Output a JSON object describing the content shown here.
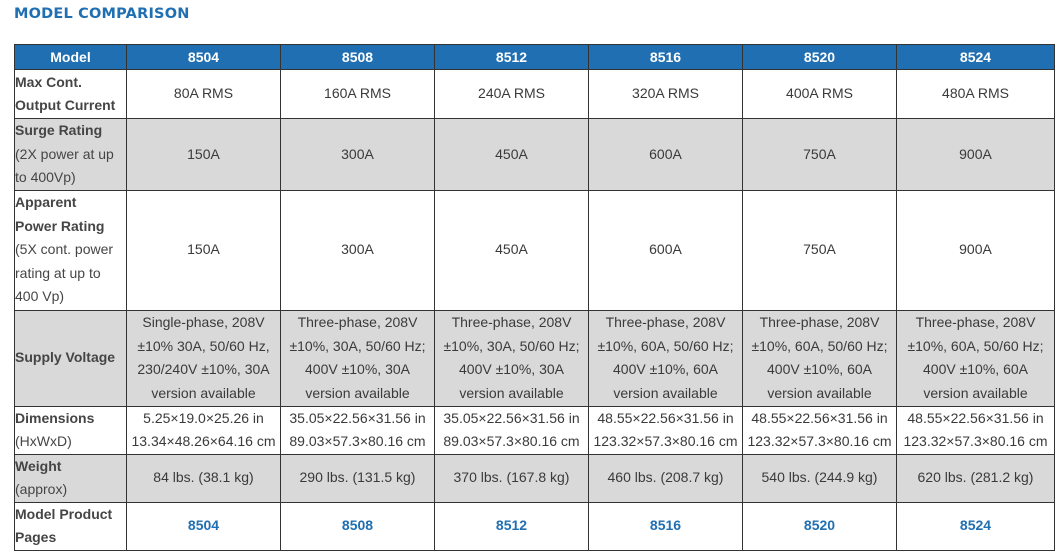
{
  "page_title": "MODEL COMPARISON",
  "header": {
    "model_label": "Model",
    "models": [
      "8504",
      "8508",
      "8512",
      "8516",
      "8520",
      "8524"
    ]
  },
  "rows": {
    "max_cont": {
      "label_lines": [
        "Max Cont.",
        "Output Current"
      ],
      "values": [
        "80A RMS",
        "160A RMS",
        "240A RMS",
        "320A RMS",
        "400A RMS",
        "480A RMS"
      ]
    },
    "surge": {
      "label": "Surge Rating",
      "sub_lines": [
        "(2X power at up",
        "to 400Vp)"
      ],
      "values": [
        "150A",
        "300A",
        "450A",
        "600A",
        "750A",
        "900A"
      ]
    },
    "apparent": {
      "label_lines": [
        "Apparent",
        "Power Rating"
      ],
      "sub_lines": [
        "(5X cont. power",
        "rating at up to",
        "400 Vp)"
      ],
      "values": [
        "150A",
        "300A",
        "450A",
        "600A",
        "750A",
        "900A"
      ]
    },
    "supply": {
      "label": "Supply Voltage",
      "values": [
        [
          "Single-phase, 208V",
          "±10% 30A, 50/60 Hz,",
          "230/240V ±10%, 30A",
          "version available"
        ],
        [
          "Three-phase, 208V",
          "±10%, 30A, 50/60 Hz;",
          "400V ±10%, 30A",
          "version available"
        ],
        [
          "Three-phase, 208V",
          "±10%, 30A, 50/60 Hz;",
          "400V ±10%, 30A",
          "version available"
        ],
        [
          "Three-phase, 208V",
          "±10%, 60A, 50/60 Hz;",
          "400V ±10%, 60A",
          "version available"
        ],
        [
          "Three-phase, 208V",
          "±10%, 60A, 50/60 Hz;",
          "400V ±10%, 60A",
          "version available"
        ],
        [
          "Three-phase, 208V",
          "±10%, 60A, 50/60 Hz;",
          "400V ±10%, 60A",
          "version available"
        ]
      ]
    },
    "dimensions": {
      "label": "Dimensions",
      "sub": "(HxWxD)",
      "values": [
        [
          "5.25×19.0×25.26 in",
          "13.34×48.26×64.16 cm"
        ],
        [
          "35.05×22.56×31.56 in",
          "89.03×57.3×80.16 cm"
        ],
        [
          "35.05×22.56×31.56 in",
          "89.03×57.3×80.16 cm"
        ],
        [
          "48.55×22.56×31.56 in",
          "123.32×57.3×80.16 cm"
        ],
        [
          "48.55×22.56×31.56 in",
          "123.32×57.3×80.16 cm"
        ],
        [
          "48.55×22.56×31.56 in",
          "123.32×57.3×80.16 cm"
        ]
      ]
    },
    "weight": {
      "label": "Weight",
      "sub": "(approx)",
      "values": [
        "84 lbs. (38.1 kg)",
        "290 lbs. (131.5 kg)",
        "370 lbs. (167.8 kg)",
        "460 lbs. (208.7 kg)",
        "540 lbs. (244.9 kg)",
        "620 lbs. (281.2 kg)"
      ]
    },
    "pages": {
      "label_lines": [
        "Model Product",
        "Pages"
      ],
      "links": [
        "8504",
        "8508",
        "8512",
        "8516",
        "8520",
        "8524"
      ]
    }
  }
}
